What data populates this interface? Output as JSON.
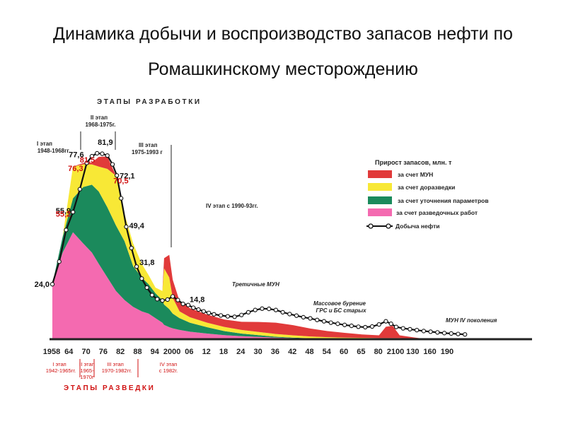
{
  "page": {
    "title_line1": "Динамика добычи и воспроизводство запасов нефти по",
    "title_line2": "Ромашкинскому месторождению"
  },
  "chart_data": {
    "type": "area",
    "title": "ЭТАПЫ РАЗРАБОТКИ",
    "bottom_title": "ЭТАПЫ РАЗВЕДКИ",
    "x_ticks": [
      "1958",
      "64",
      "70",
      "76",
      "82",
      "88",
      "94",
      "2000",
      "06",
      "12",
      "18",
      "24",
      "30",
      "36",
      "42",
      "48",
      "54",
      "60",
      "65",
      "80",
      "2100",
      "130",
      "160",
      "190"
    ],
    "production": {
      "name": "Добыча нефти",
      "x": [
        0,
        0.4,
        0.8,
        1.2,
        1.6,
        2.0,
        2.3,
        2.6,
        2.9,
        3.2,
        3.5,
        3.75,
        4.0,
        4.3,
        4.6,
        4.9,
        5.2,
        5.5,
        5.8,
        6.1,
        6.4,
        6.7,
        7.0,
        7.3,
        7.6,
        7.9,
        8.2,
        8.5,
        8.8,
        9.1,
        9.4,
        9.8,
        10.2,
        10.6,
        11.0,
        11.4,
        11.8,
        12.2,
        12.6,
        13.0,
        13.4,
        13.8,
        14.2,
        14.6,
        15.0,
        15.4,
        15.8,
        16.2,
        16.6,
        17.0,
        17.4,
        17.8,
        18.2,
        18.6,
        19.0,
        19.4,
        19.7,
        20.0,
        20.4,
        20.8,
        21.2,
        21.6,
        22.0,
        22.4,
        22.8,
        23.2,
        23.6,
        24.0
      ],
      "y": [
        24.0,
        34,
        48,
        55.9,
        66,
        77.6,
        80.6,
        81.9,
        81.7,
        80.9,
        77,
        72.1,
        62,
        49.4,
        40,
        31.8,
        26.5,
        22.5,
        19.2,
        17.4,
        16.8,
        17.2,
        18.6,
        17.0,
        15.3,
        14.8,
        13.6,
        12.8,
        12.0,
        11.3,
        10.7,
        10.2,
        9.8,
        9.6,
        10.4,
        11.6,
        12.6,
        13.2,
        13.1,
        12.6,
        11.6,
        10.8,
        10.1,
        9.4,
        8.9,
        8.2,
        7.6,
        7.0,
        6.5,
        6.0,
        5.6,
        5.2,
        5.0,
        5.3,
        6.2,
        7.6,
        6.5,
        5.1,
        4.5,
        4.1,
        3.7,
        3.3,
        3.0,
        2.7,
        2.4,
        2.2,
        2.0,
        1.8
      ]
    },
    "stack_x": [
      0,
      0.6,
      1.2,
      1.8,
      2.3,
      2.7,
      3.2,
      3.7,
      4.2,
      4.7,
      5.2,
      5.6,
      6.0,
      6.4,
      6.5,
      6.8,
      7.0,
      7.4,
      8.0,
      9.0,
      10.0,
      11.0,
      12.0,
      13.0,
      14.0,
      15.0,
      16.0,
      17.0,
      18.0,
      19.0,
      19.4,
      19.8,
      20.2,
      21.0,
      21.5
    ],
    "series": [
      {
        "name": "за счет разведочных работ",
        "color": "#f46ab0",
        "values": [
          24.0,
          38,
          47,
          42,
          38,
          33,
          27,
          21,
          17,
          14,
          12,
          11,
          9,
          7,
          6,
          5,
          4.5,
          3.8,
          3.0,
          2.2,
          1.5,
          1.0,
          0.7,
          0.4,
          0.2,
          0.0,
          0,
          0,
          0,
          0,
          0,
          0,
          0,
          0,
          0
        ]
      },
      {
        "name": "за счет уточнения параметров",
        "color": "#1b8a5c",
        "values": [
          0,
          7,
          15,
          25,
          30,
          32,
          31,
          29,
          26,
          18,
          15,
          13,
          11,
          10,
          9,
          8,
          6.5,
          5.2,
          4.0,
          2.8,
          1.8,
          1.2,
          0.8,
          0.4,
          0.2,
          0.1,
          0,
          0,
          0,
          0,
          0,
          0,
          0,
          0,
          0
        ]
      },
      {
        "name": "за счет доразведки",
        "color": "#f8e836",
        "values": [
          0,
          0,
          14,
          10,
          9,
          11,
          17,
          22,
          12,
          10,
          6,
          4,
          2.5,
          4,
          16,
          14,
          7,
          3,
          2.4,
          2.0,
          1.8,
          1.6,
          1.4,
          1.2,
          1.0,
          0.8,
          0.6,
          0.4,
          0.3,
          0.2,
          0.2,
          0.2,
          0.2,
          0,
          0
        ]
      },
      {
        "name": "за счет МУН",
        "color": "#e13a3a",
        "values": [
          0,
          0,
          0,
          0.6,
          0.8,
          4.3,
          5.5,
          0,
          0,
          0,
          0,
          0,
          0,
          0,
          4.5,
          10,
          8,
          4.5,
          4.0,
          3.6,
          3.3,
          3.6,
          4.4,
          5.0,
          4.5,
          3.5,
          2.7,
          2.1,
          1.5,
          1.2,
          5.0,
          5.4,
          1.2,
          0.5,
          0
        ]
      }
    ],
    "point_labels": [
      {
        "x": 0,
        "y": 24.0,
        "text": "24,0",
        "color": "#111111"
      },
      {
        "x": 1.2,
        "y": 55.9,
        "text": "55,9",
        "color": "#111111"
      },
      {
        "x": 1.2,
        "y": 55.2,
        "text": "55,2",
        "color": "#d01010"
      },
      {
        "x": 2.0,
        "y": 77.6,
        "text": "77,6",
        "color": "#111111"
      },
      {
        "x": 2.0,
        "y": 76.3,
        "text": "76,3",
        "color": "#d01010"
      },
      {
        "x": 2.6,
        "y": 81.9,
        "text": "81,9",
        "color": "#111111"
      },
      {
        "x": 2.6,
        "y": 81.5,
        "text": "81,5",
        "color": "#d01010"
      },
      {
        "x": 3.75,
        "y": 72.1,
        "text": "72,1",
        "color": "#111111"
      },
      {
        "x": 3.3,
        "y": 70.5,
        "text": "70,5",
        "color": "#d01010"
      },
      {
        "x": 4.3,
        "y": 49.4,
        "text": "49,4",
        "color": "#111111"
      },
      {
        "x": 4.9,
        "y": 31.8,
        "text": "31,8",
        "color": "#111111"
      },
      {
        "x": 7.9,
        "y": 14.8,
        "text": "14,8",
        "color": "#111111"
      }
    ],
    "annotations": {
      "dev_stage1": [
        "I этап",
        "1948-1968гг."
      ],
      "dev_stage2": [
        "II этап",
        "1968-1975г."
      ],
      "dev_stage3": [
        "III этап",
        "1975-1993 г"
      ],
      "dev_stage4": "IV этап с 1990-93гг.",
      "tertiary": "Третичные МУН",
      "mass_drilling": [
        "Массовое бурение",
        "ГРС и БС старых"
      ],
      "mun4": "МУН  IV поколения"
    },
    "exploration_stages": [
      {
        "lines": [
          "I этап",
          "1942-1965гг."
        ]
      },
      {
        "lines": [
          "II этап",
          "1965-",
          "1970г"
        ]
      },
      {
        "lines": [
          "III этап",
          "1970-1982гг."
        ]
      },
      {
        "lines": [
          "IV этап",
          "с 1982г."
        ]
      }
    ],
    "legend": {
      "title": "Прирост запасов, млн. т",
      "items": [
        "за счет МУН",
        "за счет доразведки",
        "за счет уточнения параметров",
        "за счет разведочных работ"
      ],
      "line_item": "Добыча нефти",
      "colors": [
        "#e13a3a",
        "#f8e836",
        "#1b8a5c",
        "#f46ab0"
      ]
    }
  }
}
